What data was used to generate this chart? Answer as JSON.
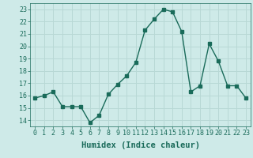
{
  "x": [
    0,
    1,
    2,
    3,
    4,
    5,
    6,
    7,
    8,
    9,
    10,
    11,
    12,
    13,
    14,
    15,
    16,
    17,
    18,
    19,
    20,
    21,
    22,
    23
  ],
  "y": [
    15.8,
    16.0,
    16.3,
    15.1,
    15.1,
    15.1,
    13.8,
    14.4,
    16.1,
    16.9,
    17.6,
    18.7,
    21.3,
    22.2,
    23.0,
    22.8,
    21.2,
    16.3,
    16.8,
    20.2,
    18.8,
    16.8,
    16.8,
    15.8
  ],
  "line_color": "#1a6b5a",
  "bg_color": "#ceeae8",
  "grid_color": "#b8d8d5",
  "xlabel": "Humidex (Indice chaleur)",
  "ylim": [
    13.5,
    23.5
  ],
  "xlim": [
    -0.5,
    23.5
  ],
  "yticks": [
    14,
    15,
    16,
    17,
    18,
    19,
    20,
    21,
    22,
    23
  ],
  "xticks": [
    0,
    1,
    2,
    3,
    4,
    5,
    6,
    7,
    8,
    9,
    10,
    11,
    12,
    13,
    14,
    15,
    16,
    17,
    18,
    19,
    20,
    21,
    22,
    23
  ],
  "xlabel_fontsize": 7.5,
  "tick_fontsize": 6.0,
  "marker_size": 2.5,
  "line_width": 1.0
}
